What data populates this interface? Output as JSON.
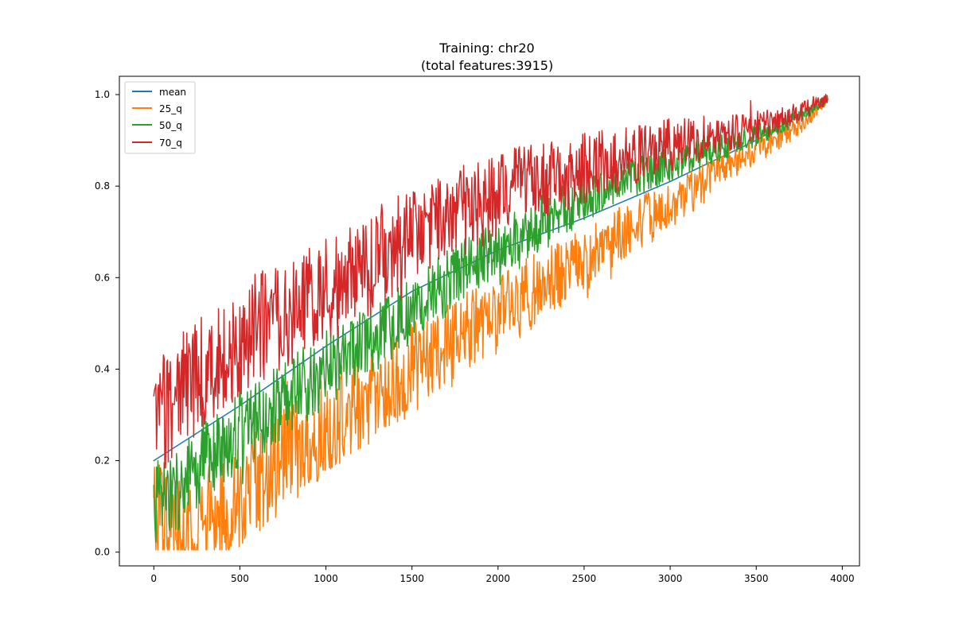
{
  "chart_data": {
    "type": "line",
    "title": "Training: chr20",
    "subtitle": "(total features:3915)",
    "xlabel": "",
    "ylabel": "",
    "xlim": [
      -200,
      4100
    ],
    "ylim": [
      -0.03,
      1.04
    ],
    "x_ticks": [
      0,
      500,
      1000,
      1500,
      2000,
      2500,
      3000,
      3500,
      4000
    ],
    "y_ticks": [
      0.0,
      0.2,
      0.4,
      0.6,
      0.8,
      1.0
    ],
    "x_tick_labels": [
      "0",
      "500",
      "1000",
      "1500",
      "2000",
      "2500",
      "3000",
      "3500",
      "4000"
    ],
    "y_tick_labels": [
      "0.0",
      "0.2",
      "0.4",
      "0.6",
      "0.8",
      "1.0"
    ],
    "grid": false,
    "legend_position": "upper left",
    "series": [
      {
        "name": "mean",
        "color": "#1f77b4",
        "line_width": 1.5,
        "x": [
          0,
          500,
          1000,
          1500,
          2000,
          2500,
          3000,
          3500,
          3915
        ],
        "y": [
          0.2,
          0.32,
          0.45,
          0.57,
          0.66,
          0.73,
          0.81,
          0.9,
          0.99
        ]
      },
      {
        "name": "25_q",
        "color": "#ff7f0e",
        "line_width": 1.5,
        "x": [
          0,
          100,
          200,
          300,
          400,
          500,
          750,
          1000,
          1250,
          1500,
          1750,
          2000,
          2250,
          2500,
          2750,
          3000,
          3250,
          3500,
          3750,
          3915
        ],
        "y": [
          0.08,
          0.06,
          0.05,
          0.07,
          0.08,
          0.12,
          0.2,
          0.28,
          0.34,
          0.4,
          0.46,
          0.52,
          0.58,
          0.64,
          0.7,
          0.76,
          0.82,
          0.88,
          0.93,
          0.99
        ],
        "spread": 0.12
      },
      {
        "name": "50_q",
        "color": "#2ca02c",
        "line_width": 1.5,
        "x": [
          0,
          100,
          200,
          300,
          400,
          500,
          750,
          1000,
          1250,
          1500,
          1750,
          2000,
          2250,
          2500,
          2750,
          3000,
          3250,
          3500,
          3750,
          3915
        ],
        "y": [
          0.11,
          0.12,
          0.16,
          0.2,
          0.22,
          0.27,
          0.33,
          0.4,
          0.46,
          0.53,
          0.6,
          0.67,
          0.72,
          0.77,
          0.81,
          0.85,
          0.88,
          0.91,
          0.95,
          0.99
        ],
        "spread": 0.09
      },
      {
        "name": "70_q",
        "color": "#d62728",
        "line_width": 1.5,
        "x": [
          0,
          100,
          200,
          300,
          400,
          500,
          750,
          1000,
          1250,
          1500,
          1750,
          2000,
          2250,
          2500,
          2750,
          3000,
          3250,
          3500,
          3750,
          3915
        ],
        "y": [
          0.28,
          0.33,
          0.37,
          0.4,
          0.43,
          0.46,
          0.52,
          0.57,
          0.63,
          0.69,
          0.74,
          0.78,
          0.81,
          0.84,
          0.86,
          0.89,
          0.91,
          0.93,
          0.96,
          0.99
        ],
        "spread": 0.13
      }
    ]
  }
}
